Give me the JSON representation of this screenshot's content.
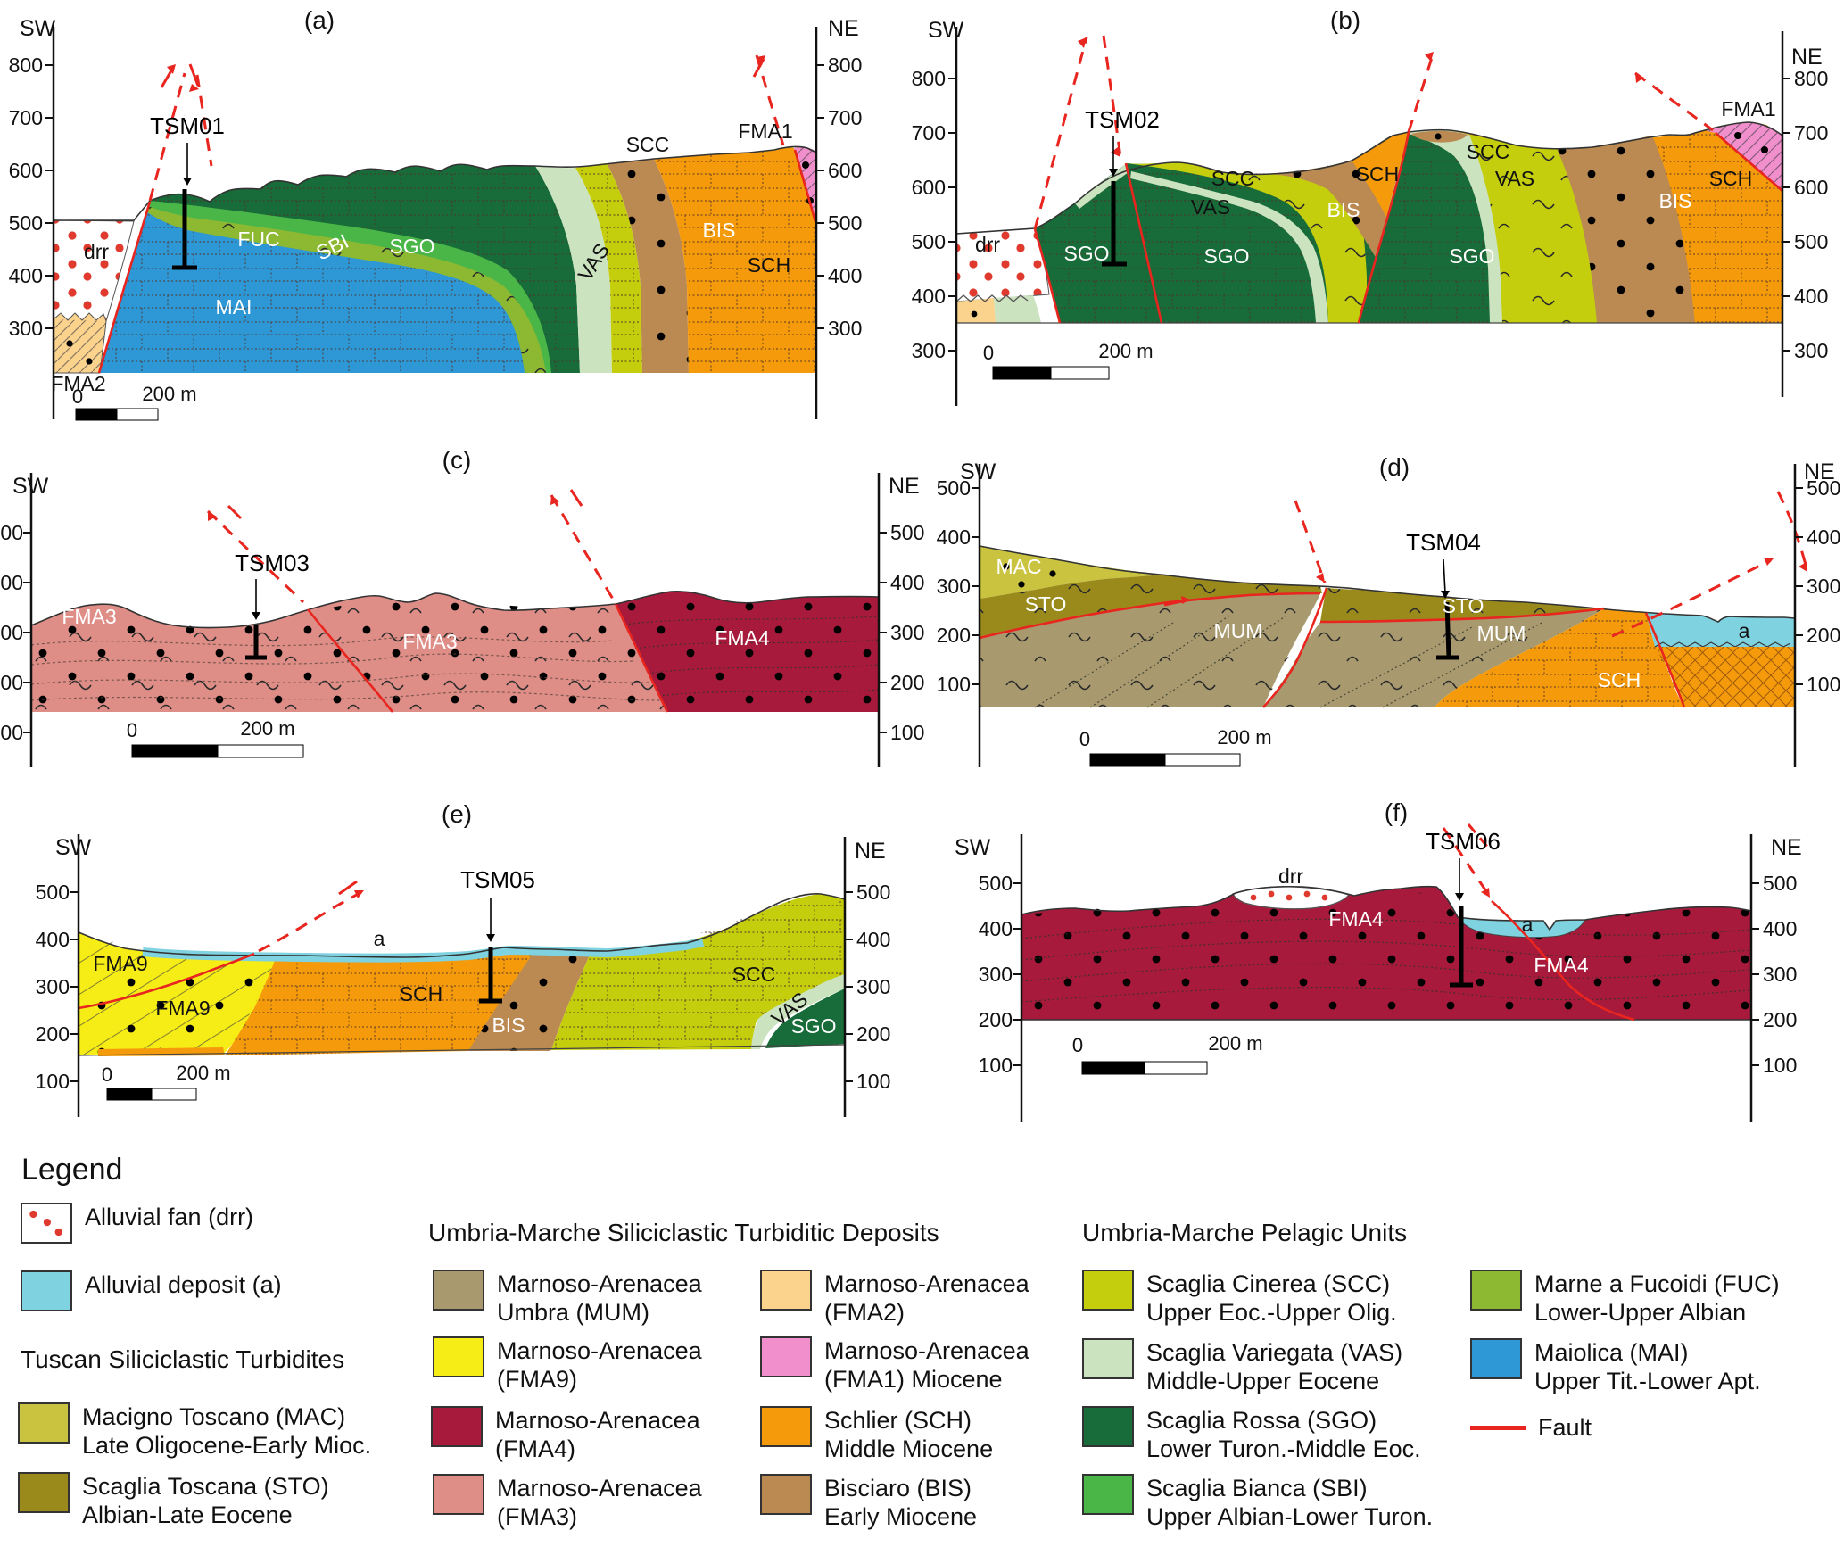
{
  "colors": {
    "fault": "#E8251F",
    "drr_dot": "#E0392E",
    "a": "#7FD2DF",
    "mac": "#C9C33F",
    "sto": "#9A8A1C",
    "mum": "#A89A6E",
    "fma9": "#F6EC16",
    "fma4": "#A81A3C",
    "fma3": "#DE8D87",
    "fma2": "#FBD38D",
    "fma1": "#F08FCB",
    "sch": "#F59B0B",
    "bis": "#BB8A52",
    "scc": "#C5CE0D",
    "vas": "#CBE3BF",
    "sgo": "#176C39",
    "sbi": "#4BB648",
    "fuc": "#8CB832",
    "mai": "#2E97D5"
  },
  "panels": {
    "a": {
      "title": "(a)",
      "sw": "SW",
      "ne": "NE",
      "ticks": [
        "800",
        "700",
        "600",
        "500",
        "400",
        "300"
      ],
      "borehole": "TSM01",
      "scale_zero": "0",
      "scale_label": "200 m",
      "units": {
        "drr": "drr",
        "fma2": "FMA2",
        "mai": "MAI",
        "fuc": "FUC",
        "sbi": "SBI",
        "sgo": "SGO",
        "vas": "VAS",
        "scc": "SCC",
        "bis": "BIS",
        "sch": "SCH",
        "fma1": "FMA1"
      }
    },
    "b": {
      "title": "(b)",
      "sw": "SW",
      "ne": "NE",
      "ticks": [
        "800",
        "700",
        "600",
        "500",
        "400",
        "300"
      ],
      "borehole": "TSM02",
      "scale_zero": "0",
      "scale_label": "200 m",
      "units": {
        "drr": "drr",
        "sgo1": "SGO",
        "scc1": "SCC",
        "vas1": "VAS",
        "sgo2": "SGO",
        "bis1": "BIS",
        "sch1": "SCH",
        "scc2": "SCC",
        "vas2": "VAS",
        "sgo3": "SGO",
        "bis2": "BIS",
        "sch2": "SCH",
        "fma1": "FMA1"
      }
    },
    "c": {
      "title": "(c)",
      "sw": "SW",
      "ne": "NE",
      "ticks": [
        "500",
        "400",
        "300",
        "200",
        "100"
      ],
      "borehole": "TSM03",
      "scale_zero": "0",
      "scale_label": "200 m",
      "units": {
        "fma3a": "FMA3",
        "fma3b": "FMA3",
        "fma4": "FMA4"
      }
    },
    "d": {
      "title": "(d)",
      "sw": "SW",
      "ne": "NE",
      "ticks": [
        "500",
        "400",
        "300",
        "200",
        "100"
      ],
      "borehole": "TSM04",
      "scale_zero": "0",
      "scale_label": "200 m",
      "units": {
        "mac": "MAC",
        "sto1": "STO",
        "sto2": "STO",
        "mum1": "MUM",
        "mum2": "MUM",
        "sch": "SCH",
        "a": "a"
      }
    },
    "e": {
      "title": "(e)",
      "sw": "SW",
      "ne": "NE",
      "ticks": [
        "500",
        "400",
        "300",
        "200",
        "100"
      ],
      "borehole": "TSM05",
      "scale_zero": "0",
      "scale_label": "200 m",
      "units": {
        "fma9a": "FMA9",
        "fma9b": "FMA9",
        "a": "a",
        "sch": "SCH",
        "bis": "BIS",
        "scc": "SCC",
        "vas": "VAS",
        "sgo": "SGO"
      }
    },
    "f": {
      "title": "(f)",
      "sw": "SW",
      "ne": "NE",
      "ticks": [
        "500",
        "400",
        "300",
        "200",
        "100"
      ],
      "borehole": "TSM06",
      "scale_zero": "0",
      "scale_label": "200 m",
      "units": {
        "drr": "drr",
        "fma4a": "FMA4",
        "fma4b": "FMA4",
        "a": "a"
      }
    }
  },
  "legend": {
    "title": "Legend",
    "surficial": [
      {
        "label": "Alluvial fan (drr)"
      },
      {
        "label": "Alluvial deposit (a)"
      }
    ],
    "groups": [
      {
        "header": "Tuscan Siliciclastic Turbidites",
        "items": [
          {
            "l1": "Macigno Toscano (MAC)",
            "l2": "Late Oligocene-Early Mioc."
          },
          {
            "l1": "Scaglia Toscana (STO)",
            "l2": "Albian-Late Eocene"
          }
        ]
      },
      {
        "header": "Umbria-Marche Siliciclastic Turbiditic Deposits",
        "items": [
          {
            "l1": "Marnoso-Arenacea",
            "l2": "Umbra (MUM)"
          },
          {
            "l1": "Marnoso-Arenacea",
            "l2": "(FMA9)"
          },
          {
            "l1": "Marnoso-Arenacea",
            "l2": "(FMA4)"
          },
          {
            "l1": "Marnoso-Arenacea",
            "l2": "(FMA3)"
          },
          {
            "l1": "Marnoso-Arenacea",
            "l2": "(FMA2)"
          },
          {
            "l1": "Marnoso-Arenacea",
            "l2": "(FMA1) Miocene"
          },
          {
            "l1": "Schlier (SCH)",
            "l2": "Middle Miocene"
          },
          {
            "l1": "Bisciaro (BIS)",
            "l2": "Early Miocene"
          }
        ]
      },
      {
        "header": "Umbria-Marche Pelagic Units",
        "items": [
          {
            "l1": "Scaglia Cinerea (SCC)",
            "l2": "Upper Eoc.-Upper Olig."
          },
          {
            "l1": "Scaglia Variegata (VAS)",
            "l2": "Middle-Upper Eocene"
          },
          {
            "l1": "Scaglia Rossa (SGO)",
            "l2": "Lower Turon.-Middle Eoc."
          },
          {
            "l1": "Scaglia Bianca (SBI)",
            "l2": "Upper Albian-Lower Turon."
          },
          {
            "l1": "Marne a Fucoidi (FUC)",
            "l2": "Lower-Upper Albian"
          },
          {
            "l1": "Maiolica (MAI)",
            "l2": "Upper Tit.-Lower Apt."
          }
        ]
      }
    ],
    "fault_label": "Fault"
  }
}
